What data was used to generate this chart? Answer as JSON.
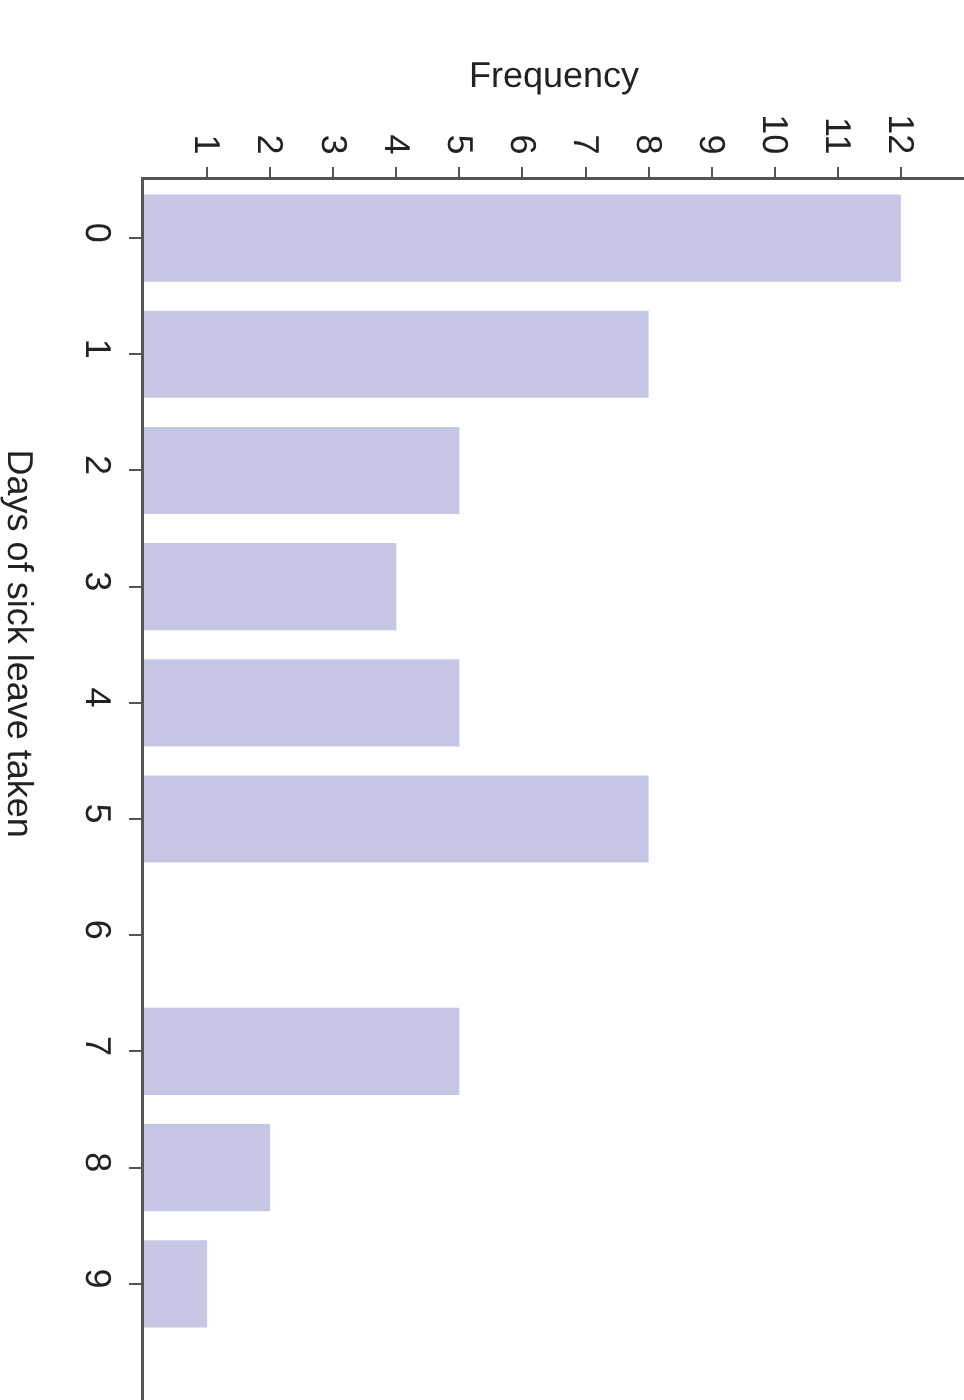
{
  "chart_data": {
    "type": "bar",
    "orientation": "horizontal",
    "xlabel": "Frequency",
    "ylabel": "Days of sick leave taken",
    "categories": [
      "0",
      "1",
      "2",
      "3",
      "4",
      "5",
      "6",
      "7",
      "8",
      "9"
    ],
    "values": [
      12,
      8,
      5,
      4,
      5,
      8,
      0,
      5,
      2,
      1
    ],
    "color": "#c5c7e5",
    "xlim": [
      0,
      13
    ],
    "xticks": [
      1,
      2,
      3,
      4,
      5,
      6,
      7,
      8,
      9,
      10,
      11,
      12
    ],
    "grid": false,
    "legend": false
  }
}
